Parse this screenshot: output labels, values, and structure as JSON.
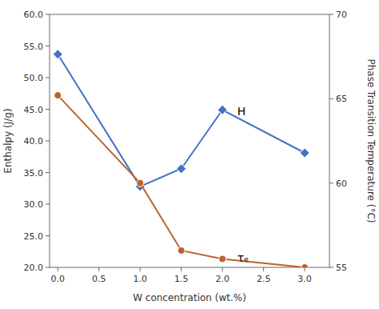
{
  "chart_data": {
    "type": "line",
    "x": [
      0,
      1,
      1.5,
      2,
      3
    ],
    "xlabel": "W concentration (wt.%)",
    "ylabel": "Enthalpy (J/g)",
    "y2label": "Phase Transition Temperature (°C)",
    "xlim": [
      -0.1,
      3.3
    ],
    "xticks": [
      {
        "value": 0,
        "label": "0.0"
      },
      0.5,
      {
        "value": 1.0,
        "label": "1.0"
      },
      1.5,
      {
        "value": 2.0,
        "label": "2.0"
      },
      2.5,
      {
        "value": 3.0,
        "label": "3.0"
      }
    ],
    "ylim": [
      20.0,
      60.0
    ],
    "yticks": [
      {
        "value": 20.0,
        "label": "20.0"
      },
      {
        "value": 25.0,
        "label": "25.0"
      },
      {
        "value": 30.0,
        "label": "30.0"
      },
      {
        "value": 35.0,
        "label": "35.0"
      },
      {
        "value": 40.0,
        "label": "40.0"
      },
      {
        "value": 45.0,
        "label": "45.0"
      },
      {
        "value": 50.0,
        "label": "50.0"
      },
      {
        "value": 55.0,
        "label": "55.0"
      },
      {
        "value": 60.0,
        "label": "60.0"
      }
    ],
    "y2lim": [
      55.0,
      70.0
    ],
    "y2ticks": [
      55,
      60,
      65,
      70
    ],
    "grid": false,
    "series": [
      {
        "color": "#4472c4",
        "marker": "diamond",
        "values": [
          53.7,
          32.8,
          35.6,
          44.9,
          38.1
        ]
      },
      {
        "color": "#c0622e",
        "marker": "circle",
        "axis": "y2",
        "values": [
          65.2,
          60.0,
          56.0,
          55.5,
          55.0
        ]
      }
    ],
    "annotations": [
      {
        "text": "H",
        "x": 2.18,
        "y": 44.5
      },
      {
        "text": "τₑ",
        "x": 2.18,
        "y": 55.5,
        "axis": "y2"
      }
    ]
  }
}
